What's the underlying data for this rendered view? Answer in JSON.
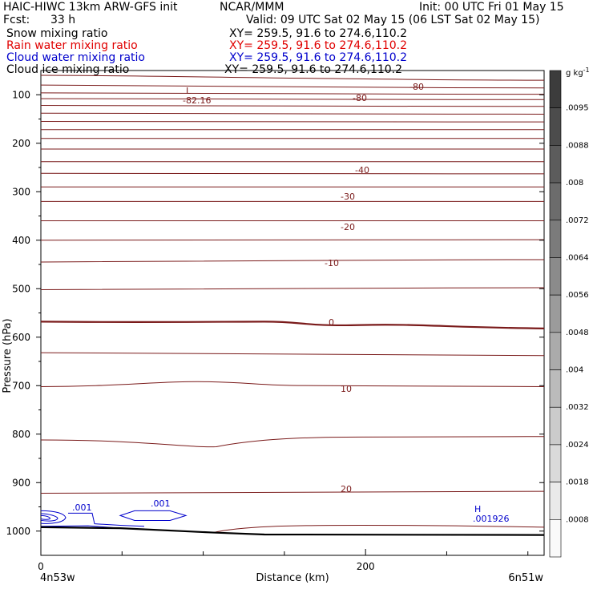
{
  "header": {
    "model_title": "HAIC-HIWC 13km ARW-GFS init",
    "org": "NCAR/MMM",
    "init": "Init: 00 UTC Fri 01 May 15",
    "fcst_label": "Fcst:",
    "fcst_value": "33 h",
    "valid": "Valid: 09 UTC Sat 02 May 15 (06 LST Sat 02 May 15)",
    "fields": [
      {
        "name": "Snow mixing ratio",
        "xy": "XY= 259.5, 91.6 to 274.6,110.2",
        "color": "#000000"
      },
      {
        "name": "Rain water mixing ratio",
        "xy": "XY= 259.5, 91.6 to 274.6,110.2",
        "color": "#e00000"
      },
      {
        "name": "Cloud water mixing ratio",
        "xy": "XY= 259.5, 91.6 to 274.6,110.2",
        "color": "#0000cc"
      },
      {
        "name": "Cloud ice mixing ratio",
        "xy": "XY= 259.5, 91.6 to 274.6,110.2",
        "color": "#000000"
      }
    ]
  },
  "chart_data": {
    "type": "cross-section contour",
    "ylabel": "Pressure (hPa)",
    "xlabel": "Distance (km)",
    "x_ticks": [
      "0",
      "200"
    ],
    "x_range": [
      0,
      310
    ],
    "y_ticks": [
      "100",
      "200",
      "300",
      "400",
      "500",
      "600",
      "700",
      "800",
      "900",
      "1000"
    ],
    "y_range": [
      50,
      1050
    ],
    "x_endpoints": {
      "left": "4n53w",
      "right": "6n51w"
    },
    "temperature_contours_color": "#7a1a1a",
    "temperature_labels": [
      "-80",
      "-80",
      "-40",
      "-30",
      "-20",
      "-10",
      "0",
      "10",
      "20"
    ],
    "extrema": [
      {
        "type": "L",
        "value": "-82.16",
        "color": "#7a1a1a"
      },
      {
        "type": "H",
        "value": ".001926",
        "color": "#0000cc"
      }
    ],
    "cloud_water_labels": [
      ".001",
      ".001"
    ],
    "colorbar": {
      "units": "g kg",
      "units_exp": "-1",
      "ticks": [
        ".0095",
        ".0088",
        ".008",
        ".0072",
        ".0064",
        ".0056",
        ".0048",
        ".004",
        ".0032",
        ".0024",
        ".0018",
        ".0008"
      ]
    }
  }
}
